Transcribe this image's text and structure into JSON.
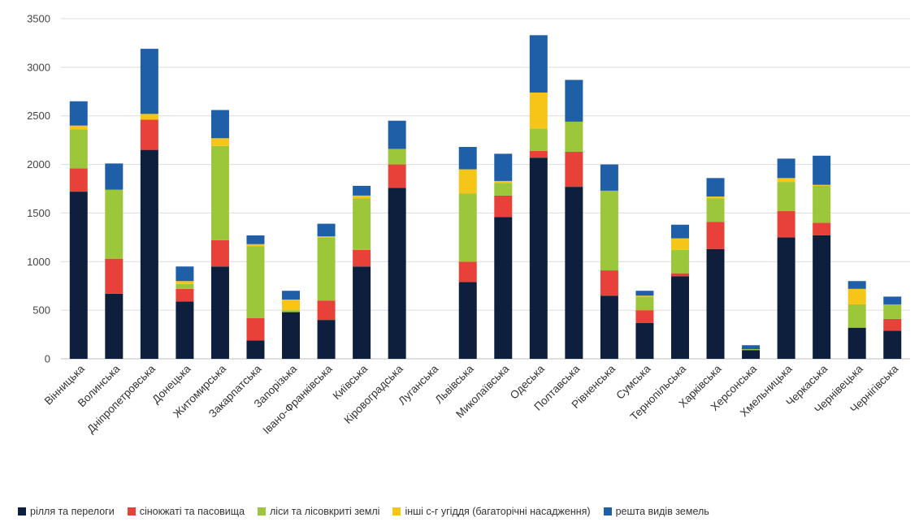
{
  "chart_data": {
    "type": "bar",
    "stacked": true,
    "categories": [
      "Вінницька",
      "Волинська",
      "Дніпропетровська",
      "Донецька",
      "Житомирська",
      "Закарпатська",
      "Запорізька",
      "Івано-Франківська",
      "Київська",
      "Кіровоградська",
      "Луганська",
      "Львівська",
      "Миколаївська",
      "Одеська",
      "Полтавська",
      "Рівненська",
      "Сумська",
      "Тернопільська",
      "Харківська",
      "Херсонська",
      "Хмельницька",
      "Черкаська",
      "Чернівецька",
      "Чернігівська"
    ],
    "series": [
      {
        "name": "рілля та перелоги",
        "color": "#0d1f3c",
        "values": [
          1720,
          670,
          2150,
          590,
          950,
          190,
          480,
          400,
          950,
          1760,
          0,
          790,
          1460,
          2070,
          1770,
          650,
          370,
          850,
          1130,
          90,
          1250,
          1270,
          320,
          290
        ]
      },
      {
        "name": "сінокжаті та пасовища",
        "color": "#e8413a",
        "values": [
          240,
          360,
          310,
          130,
          270,
          230,
          0,
          200,
          170,
          240,
          0,
          210,
          220,
          70,
          360,
          260,
          130,
          30,
          280,
          0,
          270,
          130,
          0,
          120
        ]
      },
      {
        "name": "ліси та лісовкриті землі",
        "color": "#9cc73a",
        "values": [
          400,
          710,
          0,
          50,
          970,
          740,
          20,
          650,
          530,
          160,
          0,
          700,
          130,
          230,
          310,
          820,
          140,
          240,
          240,
          10,
          300,
          380,
          240,
          150
        ]
      },
      {
        "name": "інші с-г угіддя (багаторічні насадження)",
        "color": "#f5c518",
        "values": [
          40,
          0,
          60,
          30,
          80,
          20,
          110,
          10,
          30,
          0,
          0,
          250,
          20,
          370,
          0,
          0,
          10,
          120,
          20,
          0,
          40,
          10,
          160,
          0
        ]
      },
      {
        "name": "решта видів земель",
        "color": "#1f5fa8",
        "values": [
          250,
          270,
          670,
          150,
          290,
          90,
          90,
          130,
          100,
          290,
          0,
          230,
          280,
          590,
          430,
          270,
          50,
          140,
          190,
          40,
          200,
          300,
          80,
          80
        ]
      }
    ],
    "ylim": [
      0,
      3500
    ],
    "yticks": [
      0,
      500,
      1000,
      1500,
      2000,
      2500,
      3000,
      3500
    ],
    "grid": true,
    "legend_position": "bottom"
  }
}
